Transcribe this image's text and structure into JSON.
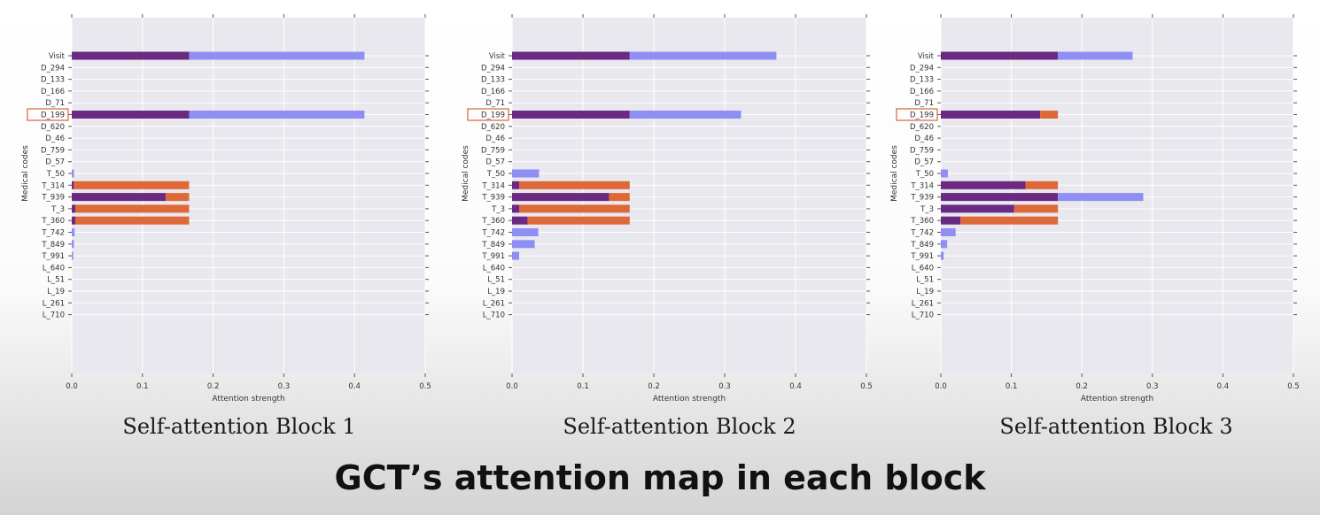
{
  "page": {
    "title": "GCT’s attention map in each block"
  },
  "colors": {
    "plot_bg": "#e8e8ee",
    "grid": "#ffffff",
    "dark_segment": "#6b2a82",
    "light_segment": "#8f8ef4",
    "orange_segment": "#df6839",
    "highlight_box": "#d9643a"
  },
  "chart_data": [
    {
      "type": "bar",
      "orientation": "horizontal",
      "stacked": true,
      "caption": "Self-attention Block 1",
      "xlabel": "Attention strength",
      "ylabel": "Medical codes",
      "xlim": [
        0,
        0.5
      ],
      "xticks": [
        "0.0",
        "0.1",
        "0.2",
        "0.3",
        "0.4",
        "0.5"
      ],
      "grid": true,
      "highlighted_category": "D_199",
      "categories": [
        "Visit",
        "D_294",
        "D_133",
        "D_166",
        "D_71",
        "D_199",
        "D_620",
        "D_46",
        "D_759",
        "D_57",
        "T_50",
        "T_314",
        "T_939",
        "T_3",
        "T_360",
        "T_742",
        "T_849",
        "T_991",
        "L_640",
        "L_51",
        "L_19",
        "L_261",
        "L_710"
      ],
      "segments": [
        {
          "color": "dark",
          "values": [
            0.166,
            0,
            0,
            0,
            0,
            0.166,
            0,
            0,
            0,
            0,
            0,
            0.003,
            0.133,
            0.005,
            0.005,
            0,
            0,
            0,
            0,
            0,
            0,
            0,
            0
          ]
        },
        {
          "color": "light",
          "values": [
            0.248,
            0,
            0,
            0,
            0,
            0.248,
            0,
            0,
            0,
            0,
            0.003,
            0,
            0,
            0,
            0,
            0.004,
            0.003,
            0.002,
            0,
            0,
            0,
            0,
            0
          ]
        },
        {
          "color": "orange",
          "values": [
            0,
            0,
            0,
            0,
            0,
            0,
            0,
            0,
            0,
            0,
            0,
            0.163,
            0.033,
            0.161,
            0.161,
            0,
            0,
            0,
            0,
            0,
            0,
            0,
            0
          ]
        }
      ]
    },
    {
      "type": "bar",
      "orientation": "horizontal",
      "stacked": true,
      "caption": "Self-attention Block 2",
      "xlabel": "Attention strength",
      "ylabel": "Medical codes",
      "xlim": [
        0,
        0.5
      ],
      "xticks": [
        "0.0",
        "0.1",
        "0.2",
        "0.3",
        "0.4",
        "0.5"
      ],
      "grid": true,
      "highlighted_category": "D_199",
      "categories": [
        "Visit",
        "D_294",
        "D_133",
        "D_166",
        "D_71",
        "D_199",
        "D_620",
        "D_46",
        "D_759",
        "D_57",
        "T_50",
        "T_314",
        "T_939",
        "T_3",
        "T_360",
        "T_742",
        "T_849",
        "T_991",
        "L_640",
        "L_51",
        "L_19",
        "L_261",
        "L_710"
      ],
      "segments": [
        {
          "color": "dark",
          "values": [
            0.166,
            0,
            0,
            0,
            0,
            0.166,
            0,
            0,
            0,
            0,
            0,
            0.01,
            0.137,
            0.01,
            0.022,
            0,
            0,
            0,
            0,
            0,
            0,
            0,
            0
          ]
        },
        {
          "color": "light",
          "values": [
            0.207,
            0,
            0,
            0,
            0,
            0.157,
            0,
            0,
            0,
            0,
            0.038,
            0,
            0,
            0,
            0,
            0.037,
            0.032,
            0.01,
            0,
            0,
            0,
            0,
            0
          ]
        },
        {
          "color": "orange",
          "values": [
            0,
            0,
            0,
            0,
            0,
            0,
            0,
            0,
            0,
            0,
            0,
            0.156,
            0.029,
            0.156,
            0.144,
            0,
            0,
            0,
            0,
            0,
            0,
            0,
            0
          ]
        }
      ]
    },
    {
      "type": "bar",
      "orientation": "horizontal",
      "stacked": true,
      "caption": "Self-attention Block 3",
      "xlabel": "Attention strength",
      "ylabel": "Medical codes",
      "xlim": [
        0,
        0.5
      ],
      "xticks": [
        "0.0",
        "0.1",
        "0.2",
        "0.3",
        "0.4",
        "0.5"
      ],
      "grid": true,
      "highlighted_category": "D_199",
      "categories": [
        "Visit",
        "D_294",
        "D_133",
        "D_166",
        "D_71",
        "D_199",
        "D_620",
        "D_46",
        "D_759",
        "D_57",
        "T_50",
        "T_314",
        "T_939",
        "T_3",
        "T_360",
        "T_742",
        "T_849",
        "T_991",
        "L_640",
        "L_51",
        "L_19",
        "L_261",
        "L_710"
      ],
      "segments": [
        {
          "color": "dark",
          "values": [
            0.166,
            0,
            0,
            0,
            0,
            0.141,
            0,
            0,
            0,
            0,
            0,
            0.12,
            0.166,
            0.104,
            0.028,
            0,
            0,
            0,
            0,
            0,
            0,
            0,
            0
          ]
        },
        {
          "color": "light",
          "values": [
            0.106,
            0,
            0,
            0,
            0,
            0,
            0,
            0,
            0,
            0,
            0.01,
            0,
            0.121,
            0,
            0,
            0.021,
            0.009,
            0.004,
            0,
            0,
            0,
            0,
            0
          ]
        },
        {
          "color": "orange",
          "values": [
            0,
            0,
            0,
            0,
            0,
            0.025,
            0,
            0,
            0,
            0,
            0,
            0.046,
            0,
            0.062,
            0.138,
            0,
            0,
            0,
            0,
            0,
            0,
            0,
            0
          ]
        }
      ]
    }
  ]
}
